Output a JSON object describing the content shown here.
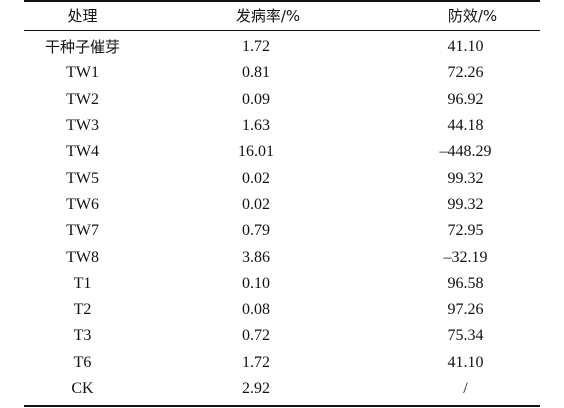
{
  "chart_data": {
    "type": "table",
    "columns": [
      "处理",
      "发病率/%",
      "防效/%"
    ],
    "rows": [
      {
        "treatment": "干种子催芽",
        "incidence": "1.72",
        "efficacy": "41.10"
      },
      {
        "treatment": "TW1",
        "incidence": "0.81",
        "efficacy": "72.26"
      },
      {
        "treatment": "TW2",
        "incidence": "0.09",
        "efficacy": "96.92"
      },
      {
        "treatment": "TW3",
        "incidence": "1.63",
        "efficacy": "44.18"
      },
      {
        "treatment": "TW4",
        "incidence": "16.01",
        "efficacy": "–448.29"
      },
      {
        "treatment": "TW5",
        "incidence": "0.02",
        "efficacy": "99.32"
      },
      {
        "treatment": "TW6",
        "incidence": "0.02",
        "efficacy": "99.32"
      },
      {
        "treatment": "TW7",
        "incidence": "0.79",
        "efficacy": "72.95"
      },
      {
        "treatment": "TW8",
        "incidence": "3.86",
        "efficacy": "–32.19"
      },
      {
        "treatment": "T1",
        "incidence": "0.10",
        "efficacy": "96.58"
      },
      {
        "treatment": "T2",
        "incidence": "0.08",
        "efficacy": "97.26"
      },
      {
        "treatment": "T3",
        "incidence": "0.72",
        "efficacy": "75.34"
      },
      {
        "treatment": "T6",
        "incidence": "1.72",
        "efficacy": "41.10"
      },
      {
        "treatment": "CK",
        "incidence": "2.92",
        "efficacy": "/"
      }
    ]
  }
}
